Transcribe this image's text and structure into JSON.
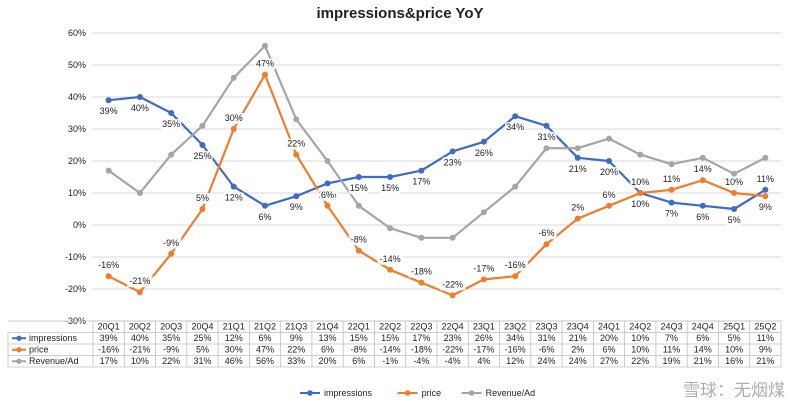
{
  "chart_data": {
    "type": "line",
    "title": "impressions&price YoY",
    "categories": [
      "20Q1",
      "20Q2",
      "20Q3",
      "20Q4",
      "21Q1",
      "21Q2",
      "21Q3",
      "21Q4",
      "22Q1",
      "22Q2",
      "22Q3",
      "22Q4",
      "23Q1",
      "23Q2",
      "23Q3",
      "23Q4",
      "24Q1",
      "24Q2",
      "24Q3",
      "24Q4",
      "25Q1",
      "25Q2"
    ],
    "ylim": [
      -30,
      60
    ],
    "yticks": [
      "-30%",
      "-20%",
      "-10%",
      "0%",
      "10%",
      "20%",
      "30%",
      "40%",
      "50%",
      "60%"
    ],
    "grid": true,
    "legend": "bottom",
    "series": [
      {
        "name": "impressions",
        "color": "#3f6cc0",
        "labeled": true,
        "values": [
          39,
          40,
          35,
          25,
          12,
          6,
          9,
          13,
          15,
          15,
          17,
          23,
          26,
          34,
          31,
          21,
          20,
          10,
          7,
          6,
          5,
          11
        ],
        "table": [
          "39%",
          "40%",
          "35%",
          "25%",
          "12%",
          "6%",
          "9%",
          "13%",
          "15%",
          "15%",
          "17%",
          "23%",
          "26%",
          "34%",
          "31%",
          "21%",
          "20%",
          "10%",
          "7%",
          "6%",
          "5%",
          "11%"
        ]
      },
      {
        "name": "price",
        "color": "#ef7d2b",
        "labeled": true,
        "values": [
          -16,
          -21,
          -9,
          5,
          30,
          47,
          22,
          6,
          -8,
          -14,
          -18,
          -22,
          -17,
          -16,
          -6,
          2,
          6,
          10,
          11,
          14,
          10,
          9
        ],
        "table": [
          "-16%",
          "-21%",
          "-9%",
          "5%",
          "30%",
          "47%",
          "22%",
          "6%",
          "-8%",
          "-14%",
          "-18%",
          "-22%",
          "-17%",
          "-16%",
          "-6%",
          "2%",
          "6%",
          "10%",
          "11%",
          "14%",
          "10%",
          "9%"
        ]
      },
      {
        "name": "Revenue/Ad",
        "color": "#a5a5a5",
        "labeled": false,
        "values": [
          17,
          10,
          22,
          31,
          46,
          56,
          33,
          20,
          6,
          -1,
          -4,
          -4,
          4,
          12,
          24,
          24,
          27,
          22,
          19,
          21,
          16,
          21
        ],
        "table": [
          "17%",
          "10%",
          "22%",
          "31%",
          "46%",
          "56%",
          "33%",
          "20%",
          "6%",
          "-1%",
          "-4%",
          "-4%",
          "4%",
          "12%",
          "24%",
          "24%",
          "27%",
          "22%",
          "19%",
          "21%",
          "16%",
          "21%"
        ]
      }
    ]
  },
  "watermark": "雪球：无烟煤"
}
